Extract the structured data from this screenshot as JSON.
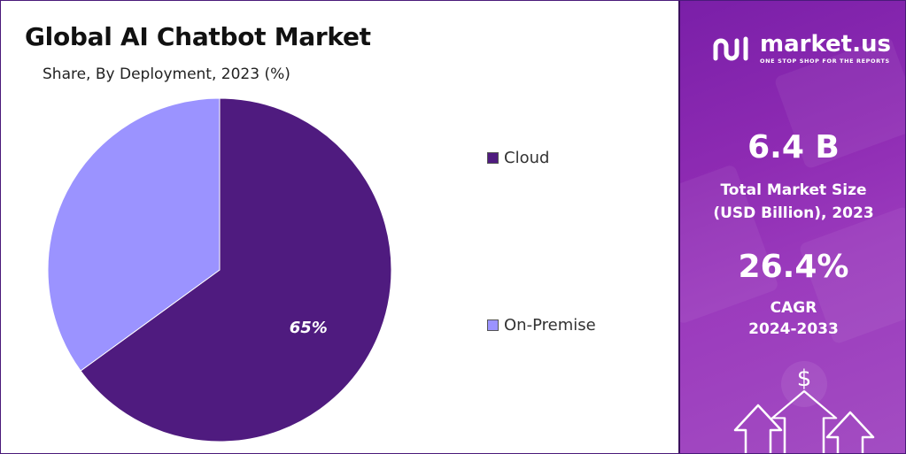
{
  "header": {
    "title": "Global AI Chatbot Market",
    "subtitle": "Share, By Deployment, 2023 (%)"
  },
  "chart_data": {
    "type": "pie",
    "title": "Global AI Chatbot Market",
    "subtitle": "Share, By Deployment, 2023 (%)",
    "categories": [
      "Cloud",
      "On-Premise"
    ],
    "values": [
      65,
      35
    ],
    "data_labels": [
      "65%",
      ""
    ],
    "colors": [
      "#4f1b7f",
      "#9b93ff"
    ],
    "legend_position": "right"
  },
  "legend": {
    "items": [
      {
        "label": "Cloud",
        "color": "#4f1b7f"
      },
      {
        "label": "On-Premise",
        "color": "#9b93ff"
      }
    ]
  },
  "brand": {
    "name": "market.us",
    "tagline": "ONE STOP SHOP FOR THE REPORTS",
    "logo_icon": "market-us-logo-icon"
  },
  "stats": {
    "market_size_value": "6.4 B",
    "market_size_label_1": "Total Market Size",
    "market_size_label_2": "(USD Billion), 2023",
    "cagr_value": "26.4%",
    "cagr_label_1": "CAGR",
    "cagr_label_2": "2024-2033"
  },
  "decor": {
    "dollar_symbol": "$",
    "icon": "dollar-growth-arrows-icon"
  }
}
